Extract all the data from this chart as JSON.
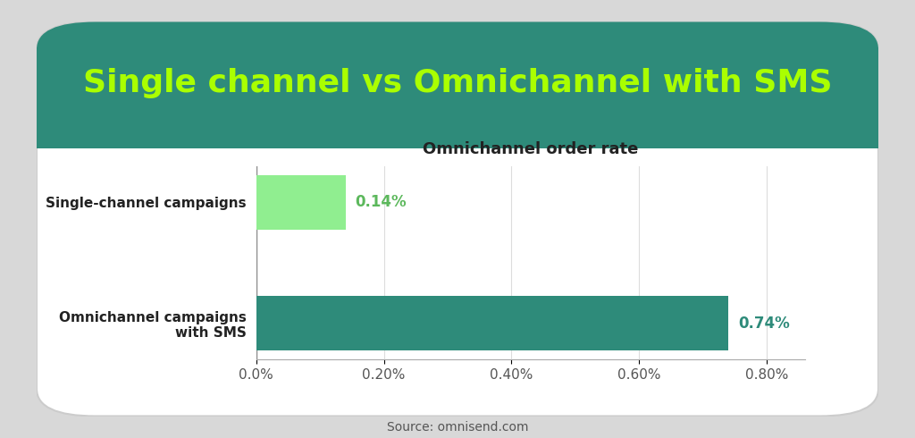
{
  "title": "Single channel vs Omnichannel with SMS",
  "subtitle": "Omnichannel order rate",
  "categories": [
    "Omnichannel campaigns\nwith SMS",
    "Single-channel campaigns"
  ],
  "values": [
    0.0074,
    0.0014
  ],
  "bar_colors": [
    "#2e8b7a",
    "#90EE90"
  ],
  "value_labels": [
    "0.74%",
    "0.14%"
  ],
  "xtick_vals": [
    0.0,
    0.002,
    0.004,
    0.006,
    0.008
  ],
  "xtick_labels": [
    "0.0%",
    "0.20%",
    "0.40%",
    "0.60%",
    "0.80%"
  ],
  "source": "Source: omnisend.com",
  "header_bg": "#2e8b7a",
  "title_color": "#aaff00",
  "outer_bg": "#d8d8d8",
  "subtitle_fontsize": 13,
  "title_fontsize": 26,
  "bar_label_fontsize": 12,
  "ytick_fontsize": 11,
  "xtick_fontsize": 11
}
